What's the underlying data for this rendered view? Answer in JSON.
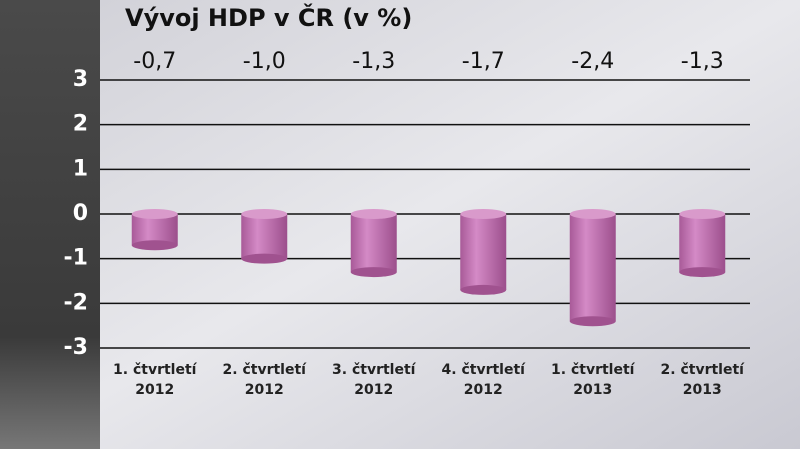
{
  "chart_data": {
    "type": "bar",
    "title": "Vývoj HDP v ČR (v %)",
    "categories": [
      [
        "1. čtvrtletí",
        "2012"
      ],
      [
        "2. čtvrtletí",
        "2012"
      ],
      [
        "3. čtvrtletí",
        "2012"
      ],
      [
        "4. čtvrtletí",
        "2012"
      ],
      [
        "1. čtvrtletí",
        "2013"
      ],
      [
        "2. čtvrtletí",
        "2013"
      ]
    ],
    "values": [
      -0.7,
      -1.0,
      -1.3,
      -1.7,
      -2.4,
      -1.3
    ],
    "value_labels": [
      "-0,7",
      "-1,0",
      "-1,3",
      "-1,7",
      "-2,4",
      "-1,3"
    ],
    "color": "#c275b3",
    "ylim": [
      -3,
      3
    ],
    "yticks": [
      -3,
      -2,
      -1,
      0,
      1,
      2,
      3
    ],
    "grid": true
  }
}
